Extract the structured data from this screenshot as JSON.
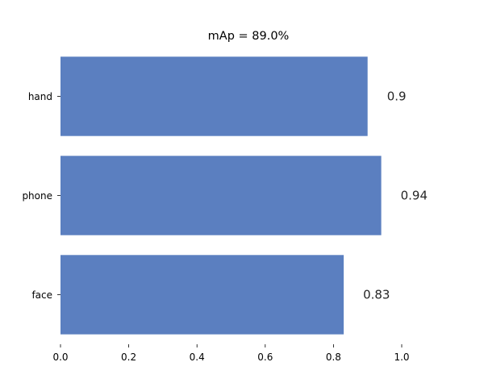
{
  "chart_data": {
    "type": "bar",
    "orientation": "horizontal",
    "title": "mAp = 89.0%",
    "xlabel": "",
    "ylabel": "",
    "categories": [
      "hand",
      "phone",
      "face"
    ],
    "values": [
      0.9,
      0.94,
      0.83
    ],
    "value_labels": [
      "0.9",
      "0.94",
      "0.83"
    ],
    "xlim": [
      0.0,
      1.0
    ],
    "xticks": [
      0.0,
      0.2,
      0.4,
      0.6,
      0.8,
      1.0
    ],
    "xtick_labels": [
      "0.0",
      "0.2",
      "0.4",
      "0.6",
      "0.8",
      "1.0"
    ],
    "grid": false,
    "legend": "none",
    "bar_color": "#5b7fc0"
  }
}
